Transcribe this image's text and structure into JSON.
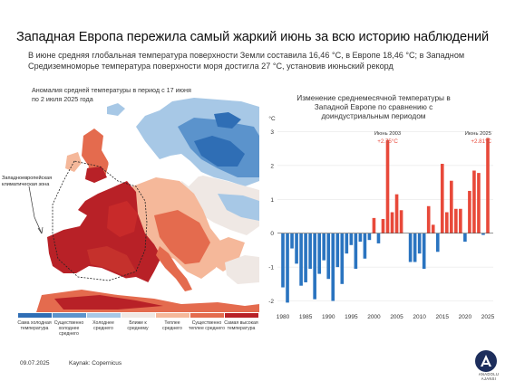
{
  "header": {
    "title": "Западная Европа пережила самый жаркий июнь за всю историю наблюдений",
    "subtitle": "В июне средняя глобальная температура поверхности Земли составила 16,46 °C, в Европе 18,46 °C; в Западном Средиземноморье температура поверхности моря достигла 27 °C, установив июньский рекорд"
  },
  "map": {
    "title": "Аномалия средней температуры в период с 17 июня по 2 июля 2025 года",
    "zone_label": "Западноевропейская климатическая зона"
  },
  "legend": [
    {
      "label": "Сама холодная температура",
      "color": "#2f6eb5"
    },
    {
      "label": "Существенно холоднее среднего",
      "color": "#5b93cc"
    },
    {
      "label": "Холоднее среднего",
      "color": "#a7c8e6"
    },
    {
      "label": "Ближе к среднему",
      "color": "#efe8e4"
    },
    {
      "label": "Теплее среднего",
      "color": "#f5b89a"
    },
    {
      "label": "Существенно теплее среднего",
      "color": "#e46b4e"
    },
    {
      "label": "Самая высокая температура",
      "color": "#b82127"
    }
  ],
  "footer": {
    "date": "09.07.2025",
    "source": "Kaynak: Copernicus",
    "logo_text": "ANADOLU AJANSI"
  },
  "chart_data": {
    "type": "bar",
    "title": "Изменение среднемесячной температуры в Западной Европе по сравнению с доиндустриальным периодом",
    "ylabel": "°C",
    "ylim": [
      -2.2,
      3.2
    ],
    "yticks": [
      3,
      2,
      1,
      0,
      -1,
      -2
    ],
    "xticks": [
      1980,
      1985,
      1990,
      1995,
      2000,
      2005,
      2010,
      2015,
      2020,
      2025
    ],
    "x": [
      1980,
      1981,
      1982,
      1983,
      1984,
      1985,
      1986,
      1987,
      1988,
      1989,
      1990,
      1991,
      1992,
      1993,
      1994,
      1995,
      1996,
      1997,
      1998,
      1999,
      2000,
      2001,
      2002,
      2003,
      2004,
      2005,
      2006,
      2007,
      2008,
      2009,
      2010,
      2011,
      2012,
      2013,
      2014,
      2015,
      2016,
      2017,
      2018,
      2019,
      2020,
      2021,
      2022,
      2023,
      2024,
      2025
    ],
    "values": [
      -1.6,
      -2.05,
      -0.45,
      -0.9,
      -1.55,
      -1.45,
      -1.05,
      -1.95,
      -1.2,
      -0.8,
      -1.35,
      -2.0,
      -1.0,
      -1.5,
      -0.6,
      -0.35,
      -1.05,
      -0.25,
      -0.75,
      -0.2,
      0.45,
      -0.3,
      0.42,
      2.75,
      0.62,
      1.15,
      0.68,
      0.0,
      -0.85,
      -0.85,
      -0.6,
      -1.05,
      0.8,
      0.25,
      -0.55,
      2.05,
      0.62,
      1.55,
      0.72,
      0.72,
      -0.25,
      1.25,
      1.85,
      1.78,
      -0.05,
      2.81
    ],
    "colors": {
      "positive": "#e8493a",
      "negative": "#2a74c0"
    },
    "annotations": [
      {
        "x": 2003,
        "title": "Июнь 2003",
        "value_text": "+2.75°C"
      },
      {
        "x": 2025,
        "title": "Июнь 2025",
        "value_text": "+2.81°C"
      }
    ]
  }
}
